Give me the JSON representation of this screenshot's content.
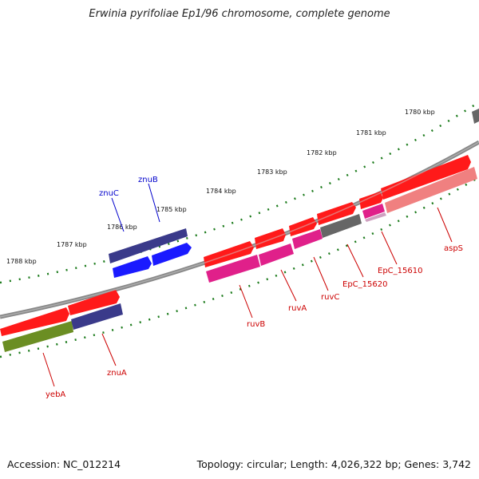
{
  "title": "Erwinia pyrifoliae Ep1/96 chromosome, complete genome",
  "footer": {
    "accession": "Accession: NC_012214",
    "summary": "Topology: circular; Length: 4,026,322 bp; Genes: 3,742"
  },
  "ruler_ticks": [
    "1780 kbp",
    "1781 kbp",
    "1782 kbp",
    "1783 kbp",
    "1784 kbp",
    "1785 kbp",
    "1786 kbp",
    "1787 kbp",
    "1788 kbp"
  ],
  "gene_labels": [
    "znuC",
    "znuB",
    "ruvB",
    "ruvA",
    "ruvC",
    "EpC_15620",
    "EpC_15610",
    "aspS",
    "znuA",
    "yebA"
  ],
  "colors": {
    "label_blue": "#0000cc",
    "label_red": "#cc0000",
    "backbone": "#888888",
    "tick_green": "#1a7a1a",
    "cds": "#ff1a1a",
    "magenta": "#e0208a",
    "pink": "#f08080",
    "navy": "#3a3a8a",
    "blue": "#1a1aff",
    "olive": "#6b8e23",
    "gray": "#666666"
  }
}
